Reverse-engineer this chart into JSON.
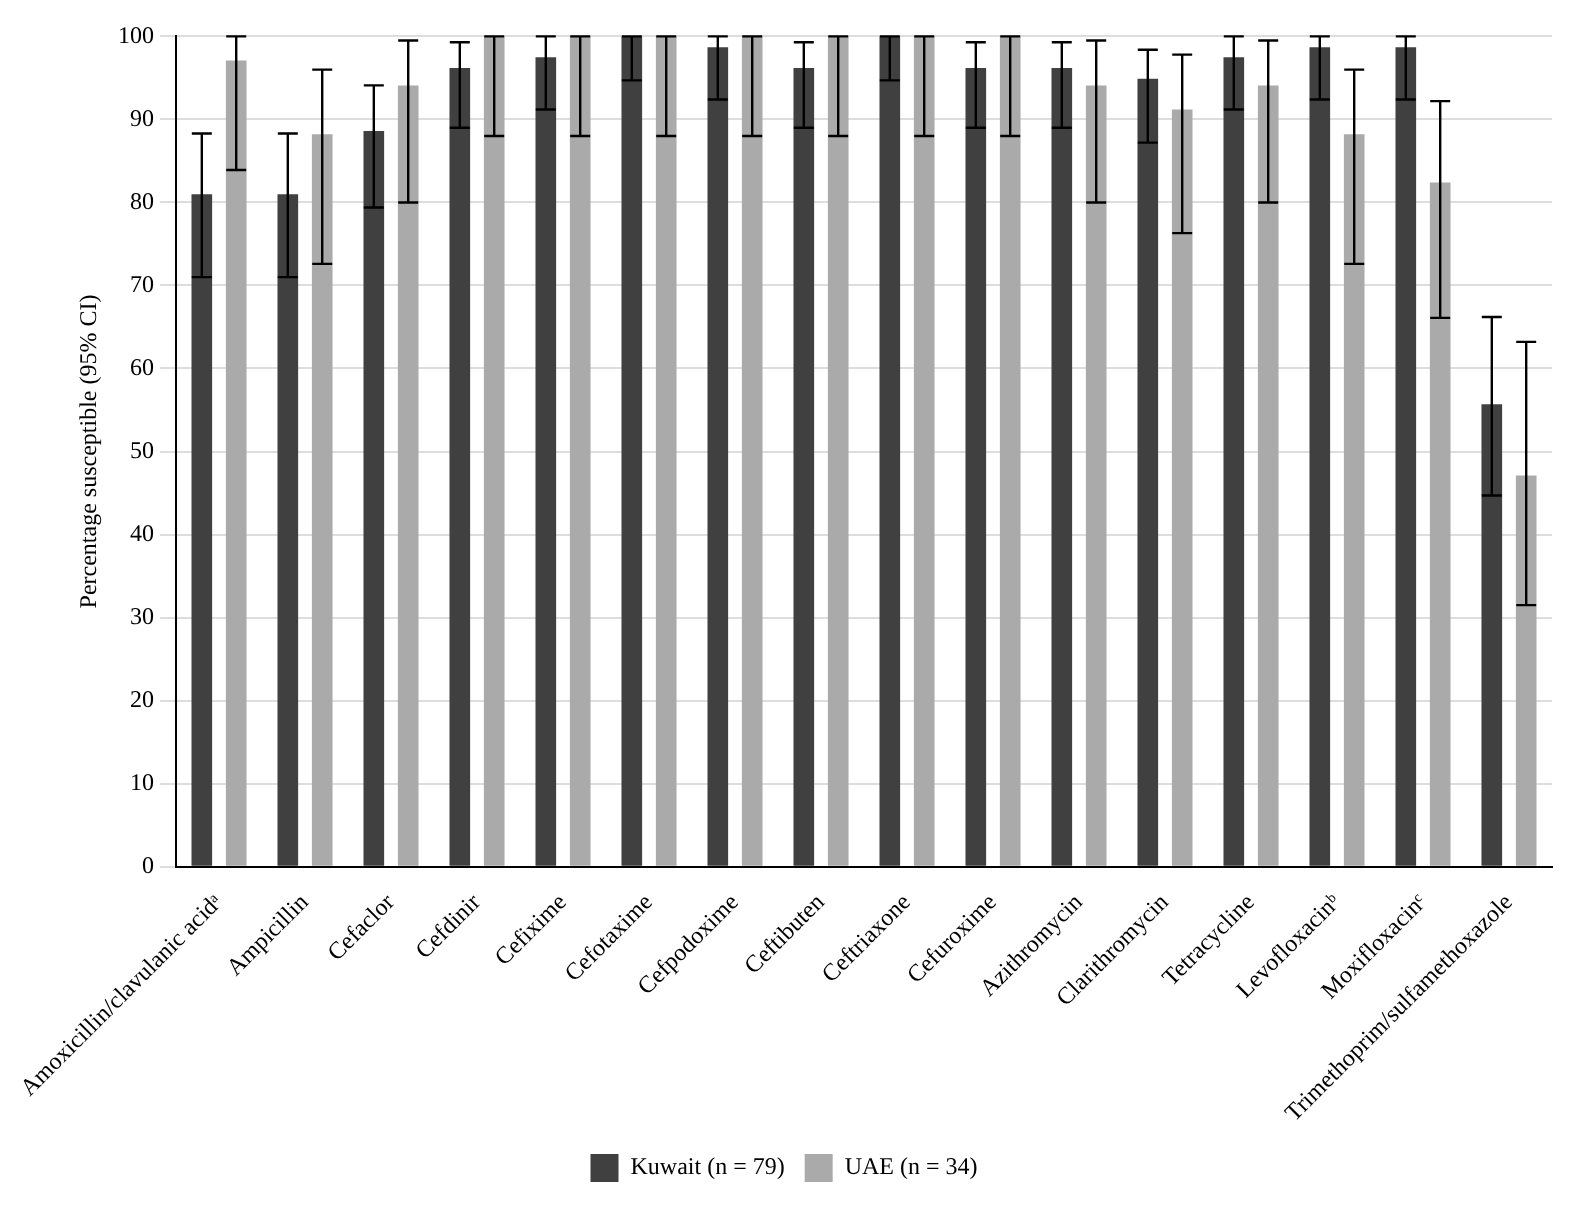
{
  "chart_data": {
    "type": "bar",
    "ylabel": "Percentage susceptible (95% CI)",
    "categories": [
      "Amoxicillin/clavulanic acidᵃ",
      "Ampicillin",
      "Cefaclor",
      "Cefdinir",
      "Cefixime",
      "Cefotaxime",
      "Cefpodoxime",
      "Ceftibuten",
      "Ceftriaxone",
      "Cefuroxime",
      "Azithromycin",
      "Clarithromycin",
      "Tetracycline",
      "Levofloxacinᵇ",
      "Moxifloxacinᶜ",
      "Trimethoprim/sulfamethoxazole"
    ],
    "series": [
      {
        "name": "Kuwait (n = 79)",
        "color": "#404040",
        "values": [
          81.0,
          81.0,
          88.6,
          96.2,
          97.5,
          100,
          98.7,
          96.2,
          100,
          96.2,
          96.2,
          94.9,
          97.5,
          98.7,
          98.7,
          55.7
        ],
        "errors": [
          [
            71.0,
            88.3
          ],
          [
            71.0,
            88.3
          ],
          [
            79.4,
            94.1
          ],
          [
            89.0,
            99.3
          ],
          [
            91.2,
            100
          ],
          [
            94.7,
            100
          ],
          [
            92.4,
            100
          ],
          [
            89.0,
            99.3
          ],
          [
            94.7,
            100
          ],
          [
            89.0,
            99.3
          ],
          [
            89.0,
            99.3
          ],
          [
            87.2,
            98.4
          ],
          [
            91.2,
            100
          ],
          [
            92.4,
            100
          ],
          [
            92.4,
            100
          ],
          [
            44.7,
            66.2
          ]
        ]
      },
      {
        "name": "UAE (n = 34)",
        "color": "#aaaaaa",
        "values": [
          97.1,
          88.2,
          94.1,
          100,
          100,
          100,
          100,
          100,
          100,
          100,
          94.1,
          91.2,
          94.1,
          88.2,
          82.4,
          47.1
        ],
        "errors": [
          [
            83.9,
            100
          ],
          [
            72.6,
            96.0
          ],
          [
            80.0,
            99.5
          ],
          [
            88.0,
            100
          ],
          [
            88.0,
            100
          ],
          [
            88.0,
            100
          ],
          [
            88.0,
            100
          ],
          [
            88.0,
            100
          ],
          [
            88.0,
            100
          ],
          [
            88.0,
            100
          ],
          [
            80.0,
            99.5
          ],
          [
            76.3,
            97.8
          ],
          [
            80.0,
            99.5
          ],
          [
            72.6,
            96.0
          ],
          [
            66.1,
            92.2
          ],
          [
            31.5,
            63.2
          ]
        ]
      }
    ],
    "ylim": [
      0,
      100
    ],
    "yticks": [
      0,
      10,
      20,
      30,
      40,
      50,
      60,
      70,
      80,
      90,
      100
    ],
    "grid": "y",
    "legend": "bottom"
  }
}
